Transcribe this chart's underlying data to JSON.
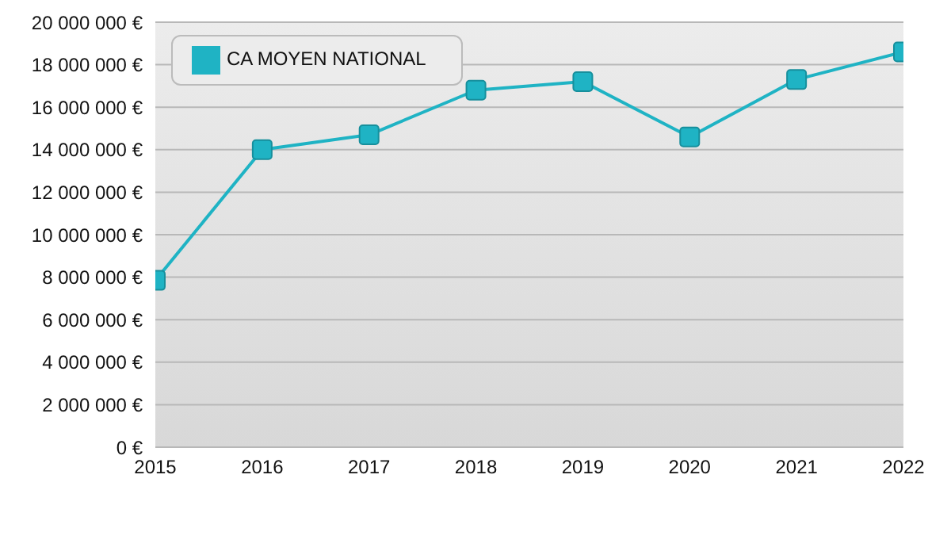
{
  "chart_data": {
    "type": "line",
    "x": [
      2015,
      2016,
      2017,
      2018,
      2019,
      2020,
      2021,
      2022
    ],
    "series": [
      {
        "name": "CA MOYEN NATIONAL",
        "color": "#1fb3c4",
        "values": [
          7850000,
          14000000,
          14700000,
          16800000,
          17200000,
          14600000,
          17300000,
          18600000
        ]
      }
    ],
    "xlim": [
      2015,
      2022
    ],
    "xticks": [
      2015,
      2016,
      2017,
      2018,
      2019,
      2020,
      2021,
      2022
    ],
    "ylim": [
      0,
      20000000
    ],
    "yticks": [
      {
        "value": 0,
        "label": "0 €"
      },
      {
        "value": 2000000,
        "label": "2 000 000 €"
      },
      {
        "value": 4000000,
        "label": "4 000 000 €"
      },
      {
        "value": 6000000,
        "label": "6 000 000 €"
      },
      {
        "value": 8000000,
        "label": "8 000 000 €"
      },
      {
        "value": 10000000,
        "label": "10 000 000 €"
      },
      {
        "value": 12000000,
        "label": "12 000 000 €"
      },
      {
        "value": 14000000,
        "label": "14 000 000 €"
      },
      {
        "value": 16000000,
        "label": "16 000 000 €"
      },
      {
        "value": 18000000,
        "label": "18 000 000 €"
      },
      {
        "value": 20000000,
        "label": "20 000 000 €"
      }
    ],
    "grid": "y",
    "legend": "top left",
    "marker": "square",
    "line_style": "solid"
  }
}
